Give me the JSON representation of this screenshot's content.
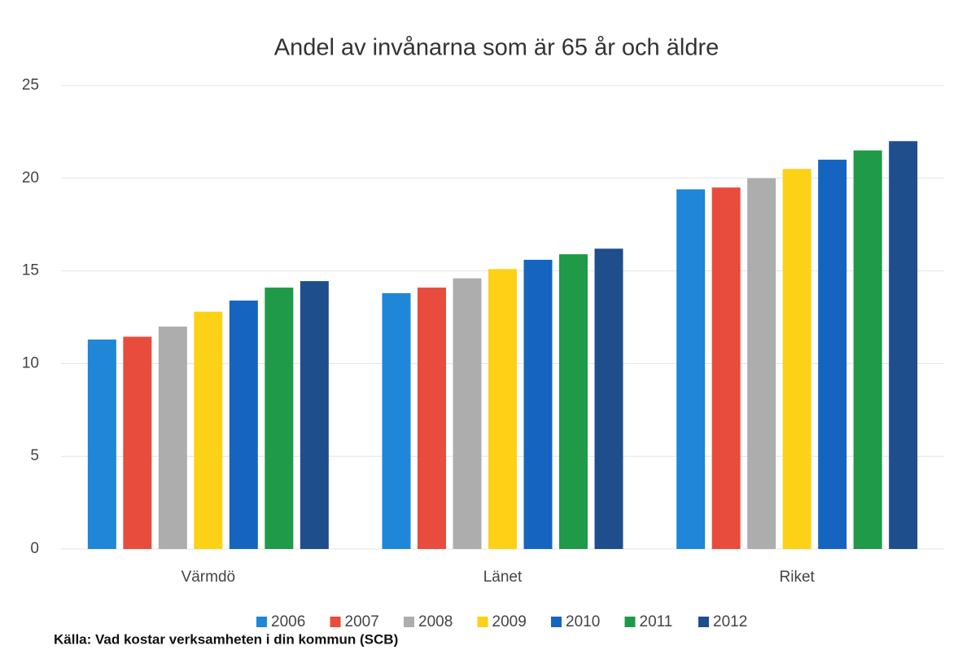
{
  "chart_data": {
    "type": "bar",
    "title": "Andel av invånarna som är 65 år och äldre",
    "source": "Källa: Vad kostar verksamheten i din kommun (SCB)",
    "categories": [
      "Värmdö",
      "Länet",
      "Riket"
    ],
    "series": [
      {
        "name": "2006",
        "color": "#1f86d8",
        "values": [
          11.3,
          13.8,
          19.4
        ]
      },
      {
        "name": "2007",
        "color": "#e84c3d",
        "values": [
          11.45,
          14.1,
          19.5
        ]
      },
      {
        "name": "2008",
        "color": "#adadad",
        "values": [
          12.0,
          14.6,
          20.0
        ]
      },
      {
        "name": "2009",
        "color": "#fcd116",
        "values": [
          12.8,
          15.1,
          20.5
        ]
      },
      {
        "name": "2010",
        "color": "#1565c0",
        "values": [
          13.4,
          15.6,
          21.0
        ]
      },
      {
        "name": "2011",
        "color": "#1e9a48",
        "values": [
          14.1,
          15.9,
          21.5
        ]
      },
      {
        "name": "2012",
        "color": "#1f4e8c",
        "values": [
          14.45,
          16.2,
          22.0
        ]
      }
    ],
    "ylim": [
      0,
      25
    ],
    "yticks": [
      0,
      5,
      10,
      15,
      20,
      25
    ],
    "grid": true,
    "legend": "bottom"
  }
}
